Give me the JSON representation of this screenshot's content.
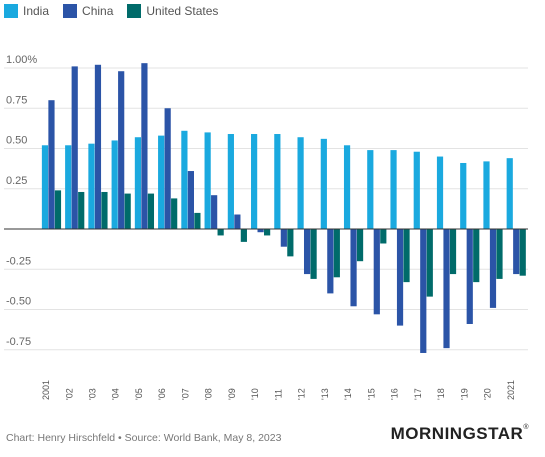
{
  "chart_data": {
    "type": "bar",
    "categories": [
      "2001",
      "'02",
      "'03",
      "'04",
      "'05",
      "'06",
      "'07",
      "'08",
      "'09",
      "'10",
      "'11",
      "'12",
      "'13",
      "'14",
      "'15",
      "'16",
      "'17",
      "'18",
      "'19",
      "'20",
      "2021"
    ],
    "series": [
      {
        "name": "India",
        "color": "#1aa9df",
        "values": [
          0.52,
          0.52,
          0.53,
          0.55,
          0.57,
          0.58,
          0.61,
          0.6,
          0.59,
          0.59,
          0.59,
          0.57,
          0.56,
          0.52,
          0.49,
          0.49,
          0.48,
          0.45,
          0.41,
          0.42,
          0.44
        ]
      },
      {
        "name": "China",
        "color": "#2b54a7",
        "values": [
          0.8,
          1.01,
          1.02,
          0.98,
          1.03,
          0.75,
          0.36,
          0.21,
          0.09,
          -0.02,
          -0.11,
          -0.28,
          -0.4,
          -0.48,
          -0.53,
          -0.6,
          -0.77,
          -0.74,
          -0.59,
          -0.49,
          -0.28
        ]
      },
      {
        "name": "United States",
        "color": "#006b6a",
        "values": [
          0.24,
          0.23,
          0.23,
          0.22,
          0.22,
          0.19,
          0.1,
          -0.04,
          -0.08,
          -0.04,
          -0.17,
          -0.31,
          -0.3,
          -0.2,
          -0.09,
          -0.33,
          -0.42,
          -0.28,
          -0.33,
          -0.31,
          -0.29
        ]
      }
    ],
    "yticks": [
      1.0,
      0.75,
      0.5,
      0.25,
      -0.25,
      -0.5,
      -0.75
    ],
    "ytick_labels": [
      "1.00%",
      "0.75",
      "0.50",
      "0.25",
      "-0.25",
      "-0.50",
      "-0.75"
    ],
    "ylim": [
      -0.9,
      1.1
    ],
    "grid": true,
    "legend_position": "top-left"
  },
  "footer": {
    "source": "Chart: Henry Hirschfeld • Source: World Bank, May 8, 2023",
    "logo": "MORNINGSTAR",
    "logo_mark": "®"
  }
}
